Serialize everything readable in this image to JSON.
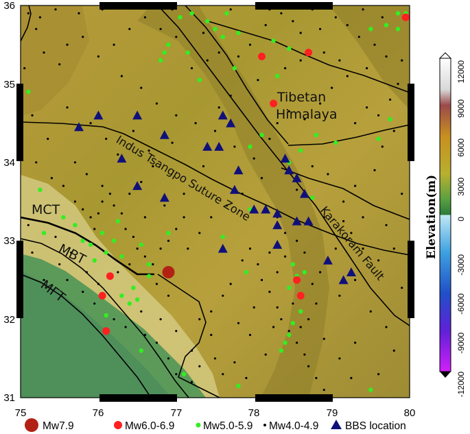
{
  "map": {
    "lon_range": [
      75,
      80
    ],
    "lat_range": [
      31,
      36
    ],
    "lon_ticks": [
      "75",
      "76",
      "77",
      "78",
      "79",
      "80"
    ],
    "lat_ticks": [
      "31",
      "32",
      "33",
      "34",
      "35",
      "36"
    ]
  },
  "labels": {
    "tibetan_line1": "Tibetan",
    "tibetan_line2": "Himalaya",
    "itsz": "Indus Tsangpo Suture Zone",
    "karakoram": "Karakoram Fault",
    "mct": "MCT",
    "mbt": "MBT",
    "mft": "MFT"
  },
  "colorbar": {
    "title": "Elevation(m)",
    "ticks": [
      "12000",
      "9000",
      "6000",
      "3000",
      "0",
      "-3000",
      "-6000",
      "-9000",
      "-12000"
    ],
    "range": [
      -12000,
      12000
    ]
  },
  "legend": {
    "items": [
      {
        "label": "Mw7.9",
        "color": "#b22214",
        "shape": "large-circle"
      },
      {
        "label": "Mw6.0-6.9",
        "color": "#ff2020",
        "shape": "circle"
      },
      {
        "label": "Mw5.0-5.9",
        "color": "#33ee22",
        "shape": "small-circle"
      },
      {
        "label": "Mw4.0-4.9",
        "color": "#000000",
        "shape": "dot"
      },
      {
        "label": "BBS location",
        "color": "#10107a",
        "shape": "triangle"
      }
    ]
  },
  "events": {
    "mw79": [
      [
        76.9,
        32.6
      ]
    ],
    "mw6": [
      [
        76.15,
        32.55
      ],
      [
        76.05,
        32.3
      ],
      [
        76.1,
        31.85
      ],
      [
        78.1,
        35.35
      ],
      [
        78.7,
        35.4
      ],
      [
        78.25,
        34.75
      ],
      [
        78.55,
        32.5
      ],
      [
        78.6,
        32.3
      ],
      [
        79.95,
        35.85
      ]
    ],
    "mw5": [
      [
        75.1,
        34.9
      ],
      [
        75.25,
        33.65
      ],
      [
        75.3,
        33.1
      ],
      [
        75.55,
        33.3
      ],
      [
        75.7,
        33.2
      ],
      [
        75.8,
        33.0
      ],
      [
        75.9,
        32.95
      ],
      [
        76.05,
        33.1
      ],
      [
        76.1,
        32.85
      ],
      [
        76.2,
        33.0
      ],
      [
        76.25,
        33.25
      ],
      [
        76.3,
        32.8
      ],
      [
        75.95,
        32.75
      ],
      [
        76.55,
        32.95
      ],
      [
        76.65,
        32.7
      ],
      [
        76.45,
        32.4
      ],
      [
        76.5,
        32.25
      ],
      [
        76.4,
        32.2
      ],
      [
        76.1,
        32.05
      ],
      [
        76.65,
        32.55
      ],
      [
        76.55,
        31.6
      ],
      [
        77.1,
        31.3
      ],
      [
        77.8,
        31.15
      ],
      [
        77.6,
        33.05
      ],
      [
        77.95,
        34.2
      ],
      [
        78.1,
        34.35
      ],
      [
        78.45,
        34.0
      ],
      [
        78.6,
        34.15
      ],
      [
        78.8,
        34.35
      ],
      [
        79.05,
        34.25
      ],
      [
        79.6,
        34.3
      ],
      [
        79.75,
        34.55
      ],
      [
        79.85,
        35.7
      ],
      [
        79.7,
        35.75
      ],
      [
        79.85,
        35.9
      ],
      [
        79.5,
        35.7
      ],
      [
        77.5,
        35.7
      ],
      [
        77.6,
        35.6
      ],
      [
        77.8,
        35.65
      ],
      [
        77.4,
        35.8
      ],
      [
        77.2,
        35.9
      ],
      [
        77.3,
        35.05
      ],
      [
        77.15,
        35.4
      ],
      [
        76.9,
        35.5
      ],
      [
        77.75,
        35.2
      ],
      [
        76.85,
        35.4
      ],
      [
        76.8,
        35.3
      ],
      [
        77.9,
        32.6
      ],
      [
        78.5,
        32.7
      ],
      [
        78.65,
        32.6
      ],
      [
        78.55,
        32.55
      ],
      [
        78.45,
        32.4
      ],
      [
        78.6,
        32.1
      ],
      [
        78.5,
        31.95
      ],
      [
        78.45,
        31.8
      ],
      [
        78.4,
        31.7
      ],
      [
        78.35,
        31.6
      ],
      [
        79.5,
        31.1
      ],
      [
        79.95,
        35.9
      ],
      [
        78.75,
        33.55
      ],
      [
        78.3,
        35.1
      ],
      [
        78.45,
        35.45
      ],
      [
        78.25,
        35.55
      ],
      [
        77.65,
        35.9
      ],
      [
        77.95,
        33.4
      ],
      [
        76.9,
        33.1
      ],
      [
        76.3,
        32.3
      ],
      [
        77.05,
        35.85
      ]
    ],
    "mw4": [
      [
        75.1,
        35.9
      ],
      [
        75.2,
        35.7
      ],
      [
        75.3,
        35.4
      ],
      [
        75.05,
        35.2
      ],
      [
        75.15,
        34.6
      ],
      [
        75.35,
        34.3
      ],
      [
        75.2,
        34.0
      ],
      [
        75.4,
        33.8
      ],
      [
        75.55,
        33.7
      ],
      [
        75.7,
        33.5
      ],
      [
        75.8,
        33.4
      ],
      [
        75.9,
        33.3
      ],
      [
        75.95,
        33.15
      ],
      [
        76.0,
        33.35
      ],
      [
        76.05,
        33.5
      ],
      [
        76.15,
        33.6
      ],
      [
        76.2,
        33.45
      ],
      [
        76.3,
        33.35
      ],
      [
        76.35,
        33.15
      ],
      [
        76.45,
        33.05
      ],
      [
        76.5,
        32.9
      ],
      [
        76.6,
        32.8
      ],
      [
        76.7,
        32.7
      ],
      [
        76.8,
        32.9
      ],
      [
        76.9,
        33.0
      ],
      [
        77.0,
        33.15
      ],
      [
        77.1,
        33.3
      ],
      [
        76.4,
        33.6
      ],
      [
        76.55,
        33.75
      ],
      [
        76.7,
        33.95
      ],
      [
        76.25,
        34.1
      ],
      [
        76.1,
        34.3
      ],
      [
        75.9,
        34.5
      ],
      [
        75.6,
        34.7
      ],
      [
        75.7,
        34.0
      ],
      [
        75.5,
        32.7
      ],
      [
        75.6,
        32.5
      ],
      [
        75.8,
        32.35
      ],
      [
        75.95,
        32.2
      ],
      [
        76.2,
        32.0
      ],
      [
        76.35,
        31.9
      ],
      [
        76.6,
        31.8
      ],
      [
        76.75,
        31.7
      ],
      [
        76.9,
        31.5
      ],
      [
        77.0,
        31.3
      ],
      [
        77.2,
        31.2
      ],
      [
        77.3,
        31.4
      ],
      [
        77.5,
        31.5
      ],
      [
        77.6,
        31.3
      ],
      [
        77.75,
        31.45
      ],
      [
        77.9,
        31.25
      ],
      [
        77.45,
        32.1
      ],
      [
        77.6,
        32.3
      ],
      [
        77.7,
        32.45
      ],
      [
        77.85,
        32.75
      ],
      [
        77.95,
        32.9
      ],
      [
        78.05,
        32.7
      ],
      [
        78.1,
        32.5
      ],
      [
        78.2,
        32.35
      ],
      [
        78.3,
        32.15
      ],
      [
        78.35,
        32.0
      ],
      [
        78.45,
        31.85
      ],
      [
        78.55,
        31.7
      ],
      [
        78.65,
        31.55
      ],
      [
        78.7,
        31.4
      ],
      [
        78.8,
        31.25
      ],
      [
        78.9,
        31.1
      ],
      [
        78.5,
        32.2
      ],
      [
        78.75,
        32.45
      ],
      [
        78.85,
        32.6
      ],
      [
        78.95,
        32.75
      ],
      [
        79.05,
        32.9
      ],
      [
        79.25,
        33.1
      ],
      [
        79.4,
        33.3
      ],
      [
        79.15,
        33.5
      ],
      [
        79.3,
        33.7
      ],
      [
        79.55,
        33.9
      ],
      [
        79.65,
        34.2
      ],
      [
        79.8,
        34.4
      ],
      [
        79.6,
        34.6
      ],
      [
        79.75,
        34.8
      ],
      [
        79.85,
        35.0
      ],
      [
        79.9,
        35.3
      ],
      [
        79.55,
        35.5
      ],
      [
        79.35,
        35.6
      ],
      [
        79.2,
        35.75
      ],
      [
        79.05,
        35.85
      ],
      [
        78.85,
        35.7
      ],
      [
        78.6,
        35.65
      ],
      [
        78.5,
        35.8
      ],
      [
        78.35,
        35.9
      ],
      [
        78.15,
        35.75
      ],
      [
        77.95,
        35.5
      ],
      [
        77.8,
        35.35
      ],
      [
        77.55,
        35.4
      ],
      [
        77.4,
        35.3
      ],
      [
        77.2,
        35.2
      ],
      [
        77.0,
        35.6
      ],
      [
        76.8,
        35.7
      ],
      [
        76.6,
        35.85
      ],
      [
        76.4,
        35.7
      ],
      [
        76.2,
        35.5
      ],
      [
        76.0,
        35.35
      ],
      [
        75.8,
        35.6
      ],
      [
        75.6,
        35.5
      ],
      [
        75.5,
        35.25
      ],
      [
        76.3,
        35.1
      ],
      [
        76.55,
        34.95
      ],
      [
        76.75,
        34.75
      ],
      [
        77.0,
        34.6
      ],
      [
        77.25,
        34.5
      ],
      [
        77.5,
        34.4
      ],
      [
        77.75,
        34.2
      ],
      [
        78.0,
        34.05
      ],
      [
        78.2,
        34.3
      ],
      [
        78.3,
        34.5
      ],
      [
        78.45,
        34.65
      ],
      [
        78.65,
        34.55
      ],
      [
        78.85,
        34.75
      ],
      [
        79.0,
        34.95
      ],
      [
        79.2,
        35.1
      ],
      [
        78.1,
        33.8
      ],
      [
        77.85,
        33.6
      ],
      [
        77.65,
        33.45
      ],
      [
        77.45,
        33.3
      ],
      [
        77.3,
        33.1
      ],
      [
        77.15,
        32.9
      ],
      [
        78.3,
        33.3
      ],
      [
        78.4,
        33.1
      ],
      [
        78.55,
        33.0
      ],
      [
        78.65,
        32.85
      ],
      [
        78.4,
        32.8
      ],
      [
        78.3,
        32.6
      ],
      [
        78.2,
        32.85
      ],
      [
        78.6,
        31.9
      ],
      [
        78.7,
        32.0
      ],
      [
        78.8,
        32.2
      ],
      [
        79.1,
        32.3
      ],
      [
        79.3,
        32.5
      ],
      [
        79.5,
        32.1
      ],
      [
        79.7,
        31.9
      ],
      [
        79.8,
        31.6
      ],
      [
        79.6,
        31.3
      ],
      [
        79.9,
        32.4
      ],
      [
        79.4,
        32.9
      ],
      [
        79.7,
        33.2
      ],
      [
        79.9,
        33.6
      ],
      [
        75.3,
        32.5
      ],
      [
        75.15,
        32.85
      ],
      [
        75.1,
        33.2
      ],
      [
        75.45,
        33.05
      ],
      [
        75.65,
        32.85
      ],
      [
        76.05,
        33.7
      ],
      [
        75.85,
        33.85
      ],
      [
        76.45,
        34.4
      ],
      [
        76.65,
        34.15
      ],
      [
        76.95,
        34.25
      ],
      [
        77.35,
        33.95
      ],
      [
        77.1,
        33.6
      ],
      [
        76.85,
        33.45
      ],
      [
        76.6,
        33.3
      ],
      [
        78.9,
        35.4
      ],
      [
        79.1,
        35.3
      ],
      [
        79.45,
        35.2
      ],
      [
        79.7,
        35.35
      ],
      [
        78.05,
        35.05
      ],
      [
        77.7,
        34.85
      ],
      [
        77.55,
        34.7
      ],
      [
        75.25,
        35.85
      ],
      [
        75.45,
        35.95
      ],
      [
        75.75,
        35.9
      ],
      [
        76.05,
        35.95
      ],
      [
        76.95,
        35.95
      ],
      [
        77.35,
        35.65
      ],
      [
        77.7,
        35.95
      ],
      [
        78.2,
        35.95
      ],
      [
        78.75,
        35.95
      ],
      [
        79.4,
        35.95
      ],
      [
        79.65,
        35.85
      ],
      [
        78.6,
        35.3
      ],
      [
        78.4,
        35.2
      ],
      [
        79.3,
        34.5
      ],
      [
        79.45,
        34.7
      ],
      [
        78.95,
        33.85
      ],
      [
        78.75,
        33.95
      ],
      [
        78.55,
        33.65
      ],
      [
        78.9,
        33.3
      ],
      [
        79.15,
        33.25
      ],
      [
        79.6,
        32.75
      ],
      [
        79.8,
        32.9
      ],
      [
        77.95,
        31.8
      ],
      [
        77.8,
        31.95
      ],
      [
        78.0,
        32.15
      ],
      [
        78.25,
        31.9
      ],
      [
        78.15,
        31.55
      ],
      [
        78.9,
        31.75
      ],
      [
        79.1,
        31.5
      ],
      [
        79.3,
        31.7
      ],
      [
        79.25,
        31.25
      ],
      [
        75.85,
        32.6
      ],
      [
        76.0,
        32.45
      ],
      [
        76.25,
        32.6
      ],
      [
        76.4,
        32.7
      ],
      [
        76.75,
        32.45
      ],
      [
        76.9,
        32.3
      ],
      [
        76.55,
        32.1
      ],
      [
        76.8,
        32.0
      ],
      [
        77.0,
        31.85
      ],
      [
        77.2,
        31.6
      ],
      [
        77.45,
        31.8
      ],
      [
        77.3,
        32.0
      ]
    ],
    "bbs": [
      [
        75.75,
        34.45
      ],
      [
        76.0,
        34.6
      ],
      [
        76.5,
        34.6
      ],
      [
        76.85,
        34.35
      ],
      [
        76.3,
        34.05
      ],
      [
        76.5,
        33.7
      ],
      [
        76.85,
        33.55
      ],
      [
        77.4,
        34.2
      ],
      [
        77.55,
        34.2
      ],
      [
        77.6,
        34.6
      ],
      [
        77.7,
        34.5
      ],
      [
        77.8,
        33.9
      ],
      [
        77.75,
        33.65
      ],
      [
        78.0,
        33.4
      ],
      [
        78.15,
        33.4
      ],
      [
        78.4,
        34.05
      ],
      [
        78.45,
        33.9
      ],
      [
        78.55,
        33.8
      ],
      [
        78.65,
        33.6
      ],
      [
        78.3,
        33.35
      ],
      [
        78.55,
        33.25
      ],
      [
        78.7,
        33.25
      ],
      [
        78.3,
        33.2
      ],
      [
        78.3,
        32.95
      ],
      [
        77.6,
        32.9
      ],
      [
        78.95,
        32.75
      ],
      [
        79.15,
        32.5
      ],
      [
        79.25,
        32.6
      ]
    ]
  }
}
